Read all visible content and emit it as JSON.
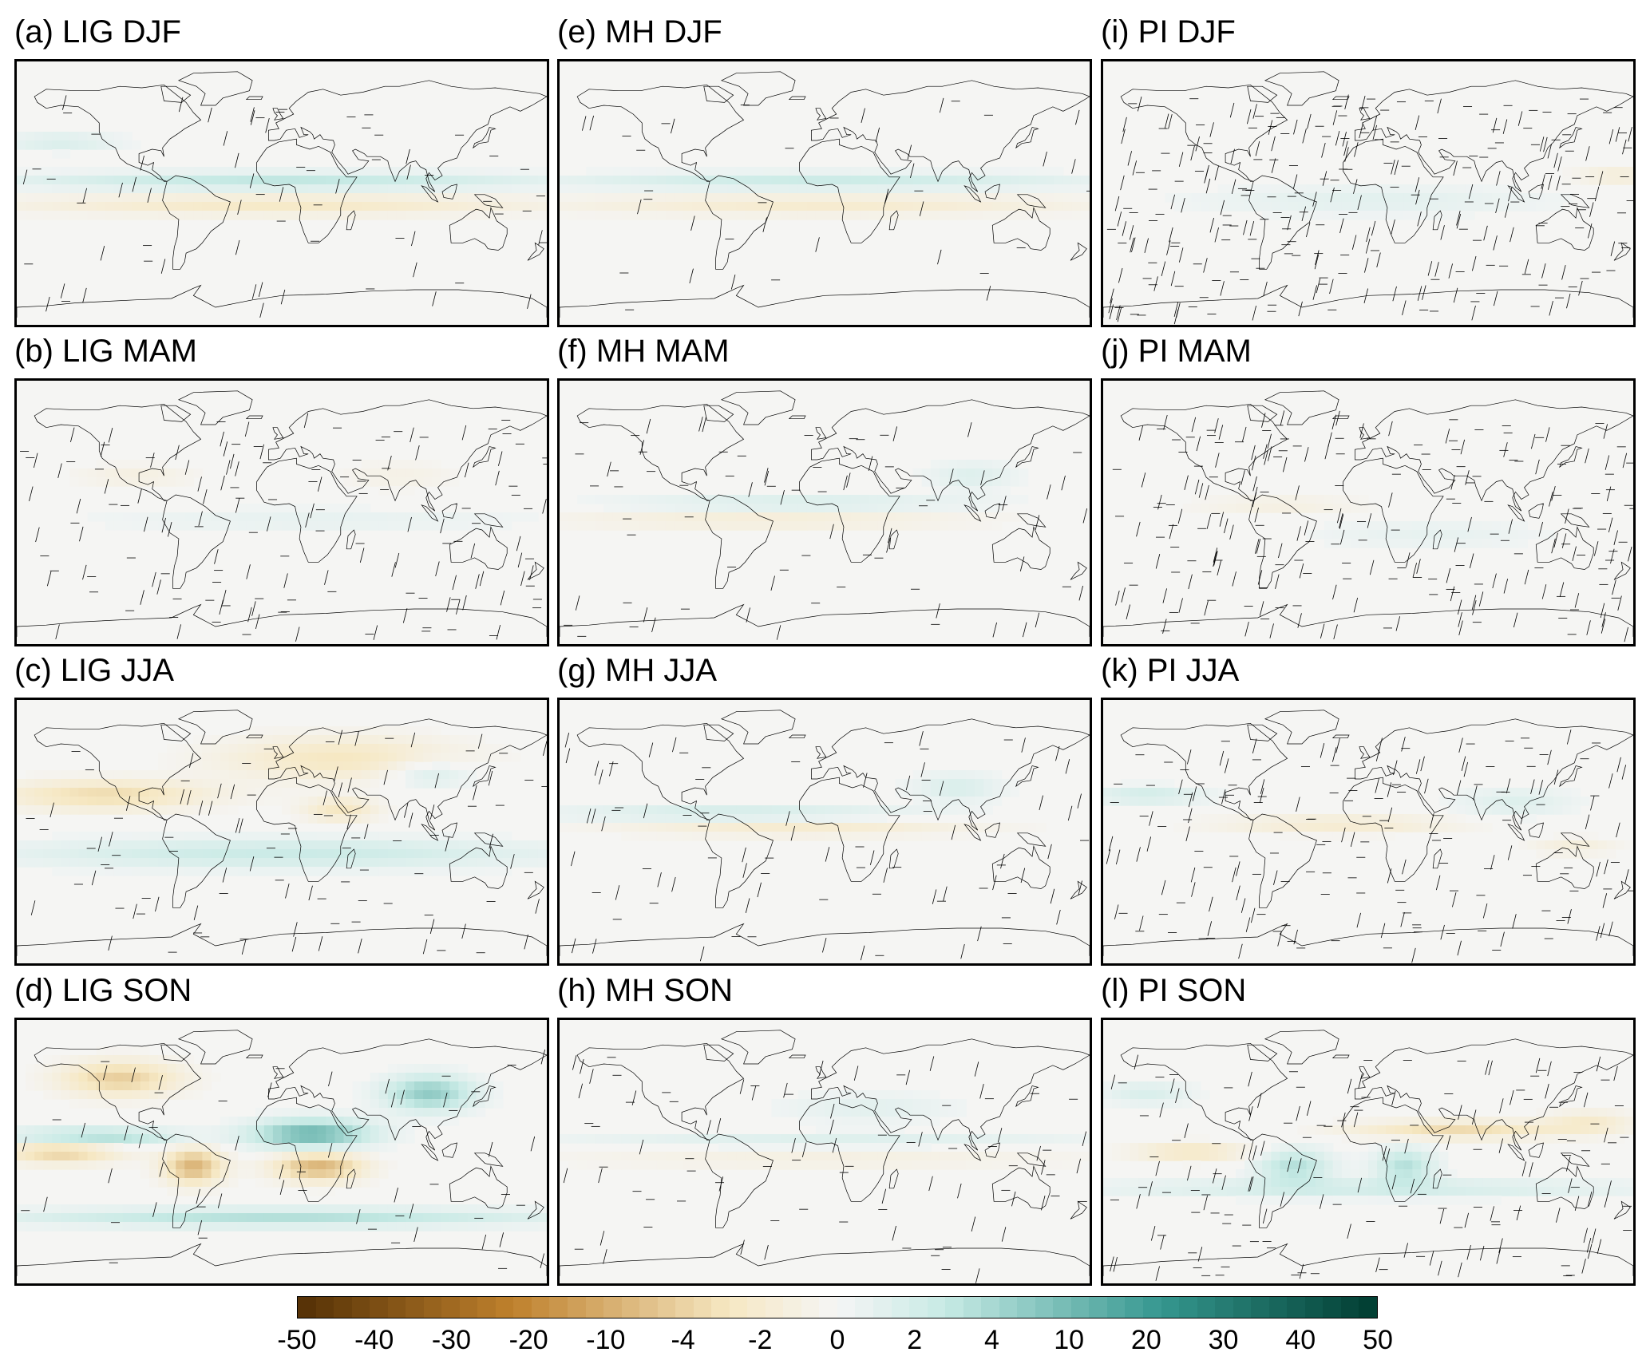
{
  "panels": [
    {
      "id": "a",
      "title": "(a) LIG DJF",
      "experiment": "LIG",
      "season": "DJF"
    },
    {
      "id": "b",
      "title": "(b) LIG MAM",
      "experiment": "LIG",
      "season": "MAM"
    },
    {
      "id": "c",
      "title": "(c) LIG JJA",
      "experiment": "LIG",
      "season": "JJA"
    },
    {
      "id": "d",
      "title": "(d) LIG SON",
      "experiment": "LIG",
      "season": "SON"
    },
    {
      "id": "e",
      "title": "(e) MH DJF",
      "experiment": "MH",
      "season": "DJF"
    },
    {
      "id": "f",
      "title": "(f) MH MAM",
      "experiment": "MH",
      "season": "MAM"
    },
    {
      "id": "g",
      "title": "(g) MH JJA",
      "experiment": "MH",
      "season": "JJA"
    },
    {
      "id": "h",
      "title": "(h) MH SON",
      "experiment": "MH",
      "season": "SON"
    },
    {
      "id": "i",
      "title": "(i) PI DJF",
      "experiment": "PI",
      "season": "DJF"
    },
    {
      "id": "j",
      "title": "(j) PI MAM",
      "experiment": "PI",
      "season": "MAM"
    },
    {
      "id": "k",
      "title": "(k) PI JJA",
      "experiment": "PI",
      "season": "JJA"
    },
    {
      "id": "l",
      "title": "(l) PI SON",
      "experiment": "PI",
      "season": "SON"
    }
  ],
  "colorbar": {
    "ticks": [
      "-50",
      "-40",
      "-30",
      "-20",
      "-10",
      "-4",
      "-2",
      "0",
      "2",
      "4",
      "10",
      "20",
      "30",
      "40",
      "50"
    ],
    "colors": {
      "negative_max": "#543005",
      "negative_mid": "#bf812d",
      "negative_light": "#f6e8c3",
      "neutral": "#f5f5f5",
      "positive_light": "#c7eae5",
      "positive_mid": "#35978f",
      "positive_max": "#003c30"
    }
  }
}
